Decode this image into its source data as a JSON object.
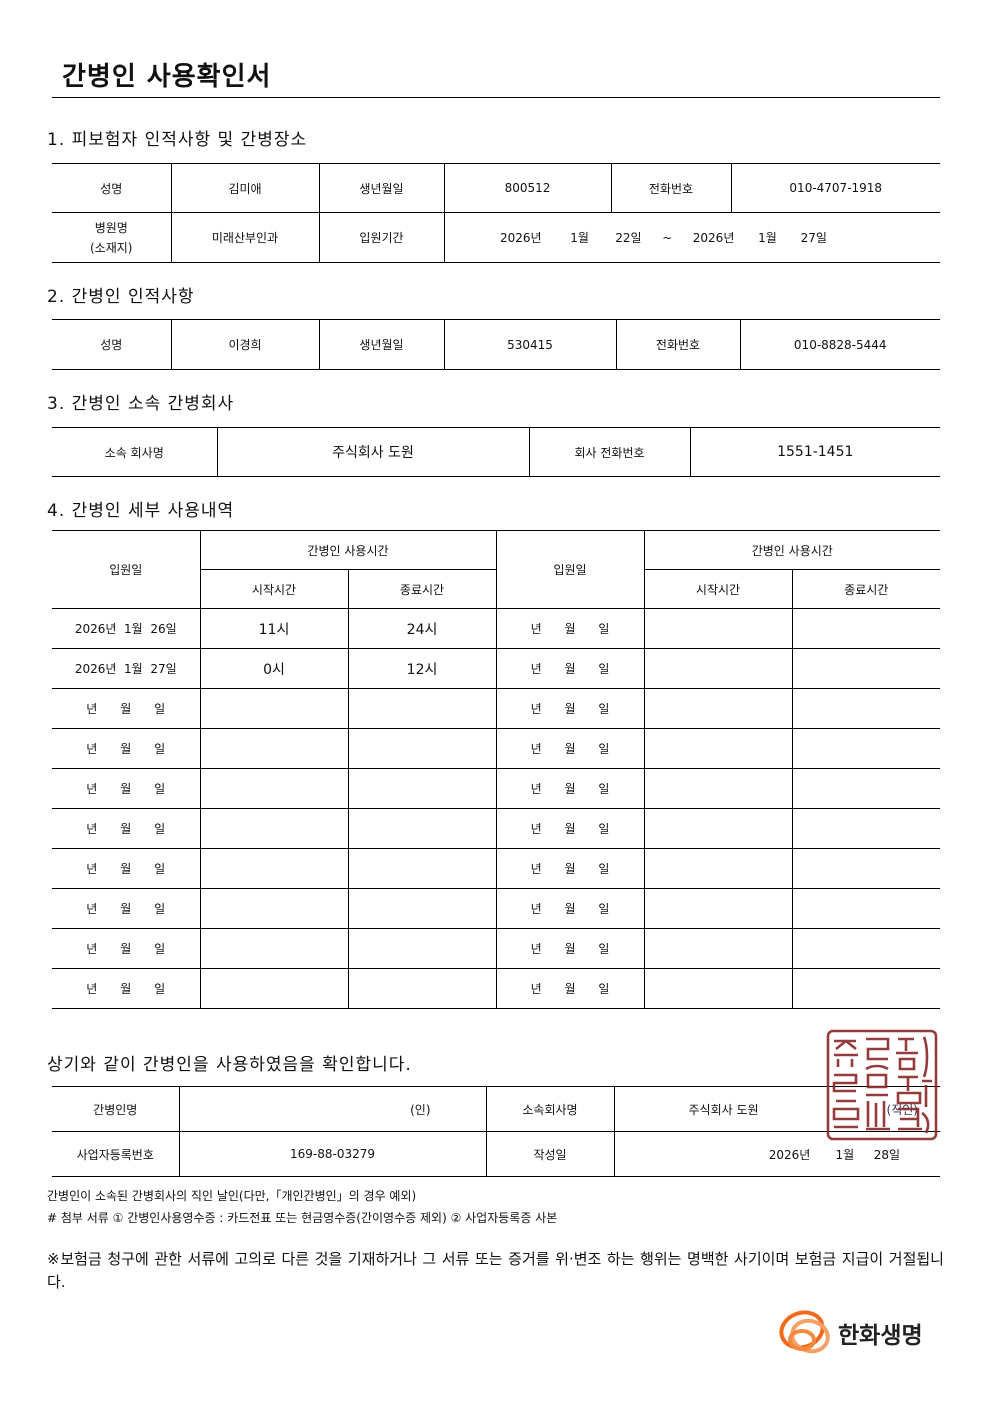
{
  "title": "간병인 사용확인서",
  "section1": {
    "heading": "1. 피보험자 인적사항 및 간병장소",
    "name_label": "성명",
    "name": "김미애",
    "birth_label": "생년월일",
    "birth": "800512",
    "phone_label": "전화번호",
    "phone": "010-4707-1918",
    "hospital_label": "병원명",
    "hospital_sub_label": "(소재지)",
    "hospital": "미래산부인과",
    "period_label": "입원기간",
    "period": {
      "start_year": "2026년",
      "start_month": "1월",
      "start_day": "22일",
      "sep": "~",
      "end_year": "2026년",
      "end_month": "1월",
      "end_day": "27일"
    }
  },
  "section2": {
    "heading": "2. 간병인 인적사항",
    "name_label": "성명",
    "name": "이경희",
    "birth_label": "생년월일",
    "birth": "530415",
    "phone_label": "전화번호",
    "phone": "010-8828-5444"
  },
  "section3": {
    "heading": "3. 간병인 소속 간병회사",
    "company_label": "소속 회사명",
    "company": "주식회사 도원",
    "company_phone_label": "회사 전화번호",
    "company_phone": "1551-1451"
  },
  "section4": {
    "heading": "4. 간병인 세부 사용내역",
    "date_header": "입원일",
    "time_header": "간병인 사용시간",
    "start_header": "시작시간",
    "end_header": "종료시간",
    "rows": [
      {
        "left_date": "2026년  1월  26일",
        "left_start": "11시",
        "left_end": "24시",
        "right_date": "년      월      일",
        "right_start": "",
        "right_end": ""
      },
      {
        "left_date": "2026년  1월  27일",
        "left_start": "0시",
        "left_end": "12시",
        "right_date": "년      월      일",
        "right_start": "",
        "right_end": ""
      },
      {
        "left_date": "년      월      일",
        "left_start": "",
        "left_end": "",
        "right_date": "년      월      일",
        "right_start": "",
        "right_end": ""
      },
      {
        "left_date": "년      월      일",
        "left_start": "",
        "left_end": "",
        "right_date": "년      월      일",
        "right_start": "",
        "right_end": ""
      },
      {
        "left_date": "년      월      일",
        "left_start": "",
        "left_end": "",
        "right_date": "년      월      일",
        "right_start": "",
        "right_end": ""
      },
      {
        "left_date": "년      월      일",
        "left_start": "",
        "left_end": "",
        "right_date": "년      월      일",
        "right_start": "",
        "right_end": ""
      },
      {
        "left_date": "년      월      일",
        "left_start": "",
        "left_end": "",
        "right_date": "년      월      일",
        "right_start": "",
        "right_end": ""
      },
      {
        "left_date": "년      월      일",
        "left_start": "",
        "left_end": "",
        "right_date": "년      월      일",
        "right_start": "",
        "right_end": ""
      },
      {
        "left_date": "년      월      일",
        "left_start": "",
        "left_end": "",
        "right_date": "년      월      일",
        "right_start": "",
        "right_end": ""
      },
      {
        "left_date": "년      월      일",
        "left_start": "",
        "left_end": "",
        "right_date": "년      월      일",
        "right_start": "",
        "right_end": ""
      }
    ]
  },
  "confirm": {
    "statement": "상기와 같이 간병인을 사용하였음을 확인합니다.",
    "caregiver_label": "간병인명",
    "seal_mark": "(인)",
    "company_label": "소속회사명",
    "company": "주식회사 도원",
    "company_seal_mark": "(직인)",
    "bizno_label": "사업자등록번호",
    "bizno": "169-88-03279",
    "date_label": "작성일",
    "date_year": "2026년",
    "date_month": "1월",
    "date_day": "28일",
    "seal_color": "#8b2b2b"
  },
  "notes": {
    "line1": "간병인이 소속된 간병회사의 직인 날인(다만,「개인간병인」의 경우 예외)",
    "line2": "# 첨부 서류 ① 간병인사용영수증 : 카드전표 또는 현금영수증(간이영수증 제외)   ② 사업자등록증 사본",
    "warning": "※보험금 청구에 관한 서류에 고의로 다른 것을 기재하거나 그 서류 또는 증거를 위·변조 하는 행위는 명백한 사기이며 보험금 지급이 거절됩니다."
  },
  "logo": {
    "text": "한화생명",
    "color": "#f26a1b"
  }
}
